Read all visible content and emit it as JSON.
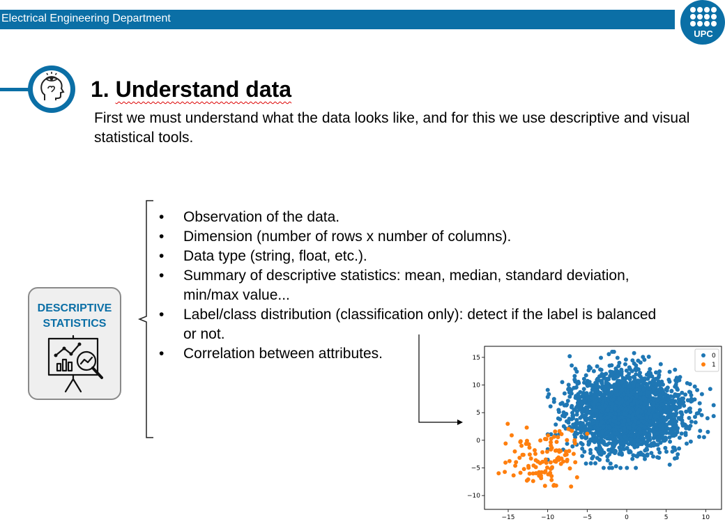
{
  "header": {
    "department": "Electrical Engineering Department",
    "logo_text": "UPC",
    "brand_color": "#0b6fa6"
  },
  "section": {
    "title_number": "1.",
    "title_text": "Understand data",
    "icon": "eye-head-icon",
    "intro": "First we must understand what the data looks like, and for this we use descriptive and visual statistical tools."
  },
  "card": {
    "title_line1": "DESCRIPTIVE",
    "title_line2": "STATISTICS",
    "icon": "presentation-chart-magnifier-icon"
  },
  "bullet_symbol": "•",
  "bullets": [
    "Observation of the data.",
    "Dimension (number of rows x number of columns).",
    "Data type (string, float, etc.).",
    "Summary of descriptive statistics: mean, median, standard deviation, min/max value...",
    "Label/class distribution (classification only): detect if the label is balanced or not.",
    "Correlation between attributes."
  ],
  "chart_data": {
    "type": "scatter",
    "xlim": [
      -18,
      12
    ],
    "ylim": [
      -12.5,
      17
    ],
    "x_ticks": [
      -15,
      -10,
      -5,
      0,
      5,
      10
    ],
    "y_ticks": [
      15,
      10,
      5,
      0,
      -5,
      -10
    ],
    "legend_position": "top-right",
    "series": [
      {
        "name": "0",
        "color": "#1f77b4",
        "center": [
          0,
          5
        ],
        "spread": [
          3.5,
          3.5
        ],
        "count": 2500,
        "x_range": [
          -10,
          11
        ],
        "y_range": [
          -5,
          16
        ]
      },
      {
        "name": "1",
        "color": "#ff7f0e",
        "center": [
          -11,
          -3
        ],
        "spread": [
          2.5,
          3
        ],
        "count": 110,
        "x_range": [
          -17,
          -5
        ],
        "y_range": [
          -12.5,
          5
        ]
      }
    ]
  }
}
